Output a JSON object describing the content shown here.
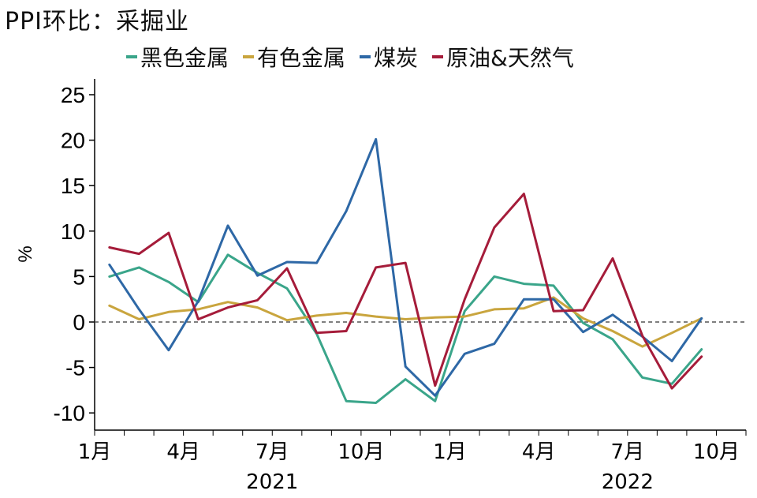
{
  "title": "PPI环比：采掘业",
  "chart_data": {
    "type": "line",
    "title": "PPI环比：采掘业",
    "ylabel": "%",
    "ylim": [
      -12,
      26
    ],
    "yticks": [
      25,
      20,
      15,
      10,
      5,
      0,
      -5,
      -10
    ],
    "x": [
      "2021-01",
      "2021-02",
      "2021-03",
      "2021-04",
      "2021-05",
      "2021-06",
      "2021-07",
      "2021-08",
      "2021-09",
      "2021-10",
      "2021-11",
      "2021-12",
      "2022-01",
      "2022-02",
      "2022-03",
      "2022-04",
      "2022-05",
      "2022-06",
      "2022-07",
      "2022-08",
      "2022-09"
    ],
    "xticks": [
      {
        "label": "1月",
        "month": "2021-01"
      },
      {
        "label": "4月",
        "month": "2021-04"
      },
      {
        "label": "7月",
        "month": "2021-07"
      },
      {
        "label": "10月",
        "month": "2021-10"
      },
      {
        "label": "1月",
        "month": "2022-01"
      },
      {
        "label": "4月",
        "month": "2022-04"
      },
      {
        "label": "7月",
        "month": "2022-07"
      },
      {
        "label": "10月",
        "month": "2022-10"
      }
    ],
    "years": [
      {
        "label": "2021",
        "month": "2021-07"
      },
      {
        "label": "2022",
        "month": "2022-07"
      }
    ],
    "zero_line": "dashed",
    "legend_position": "top",
    "series": [
      {
        "name": "黑色金属",
        "color": "#3aa58a",
        "values": [
          5.0,
          6.0,
          4.4,
          2.2,
          7.4,
          5.4,
          3.7,
          -1.3,
          -8.7,
          -8.9,
          -6.3,
          -8.7,
          1.2,
          5.0,
          4.2,
          4.0,
          -0.1,
          -1.9,
          -6.1,
          -6.8,
          -3.0
        ]
      },
      {
        "name": "有色金属",
        "color": "#c9a53e",
        "values": [
          1.8,
          0.3,
          1.1,
          1.4,
          2.2,
          1.6,
          0.2,
          0.7,
          1.0,
          0.6,
          0.3,
          0.5,
          0.6,
          1.4,
          1.5,
          2.7,
          0.4,
          -1.0,
          -2.7,
          -1.2,
          0.4
        ]
      },
      {
        "name": "煤炭",
        "color": "#2e68a6",
        "values": [
          6.3,
          1.4,
          -3.1,
          2.3,
          10.6,
          5.1,
          6.6,
          6.5,
          12.2,
          20.1,
          -4.9,
          -8.1,
          -3.5,
          -2.4,
          2.5,
          2.5,
          -1.1,
          0.8,
          -1.6,
          -4.3,
          0.4
        ]
      },
      {
        "name": "原油&天然气",
        "color": "#a51c3a",
        "values": [
          8.2,
          7.5,
          9.8,
          0.3,
          1.6,
          2.4,
          5.9,
          -1.2,
          -1.0,
          6.0,
          6.5,
          -7.0,
          2.5,
          10.4,
          14.1,
          1.2,
          1.3,
          7.0,
          -1.5,
          -7.3,
          -3.8
        ]
      }
    ]
  }
}
